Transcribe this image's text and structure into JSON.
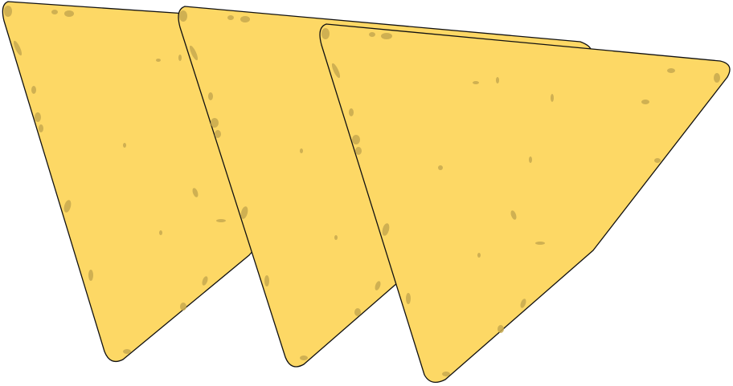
{
  "illustration": {
    "subject": "tortilla-chips",
    "chip_count": 3,
    "colors": {
      "background": "#ffffff",
      "chip_fill": "#fdd865",
      "speck_fill": "#c7a94f",
      "outline": "#111111"
    }
  }
}
